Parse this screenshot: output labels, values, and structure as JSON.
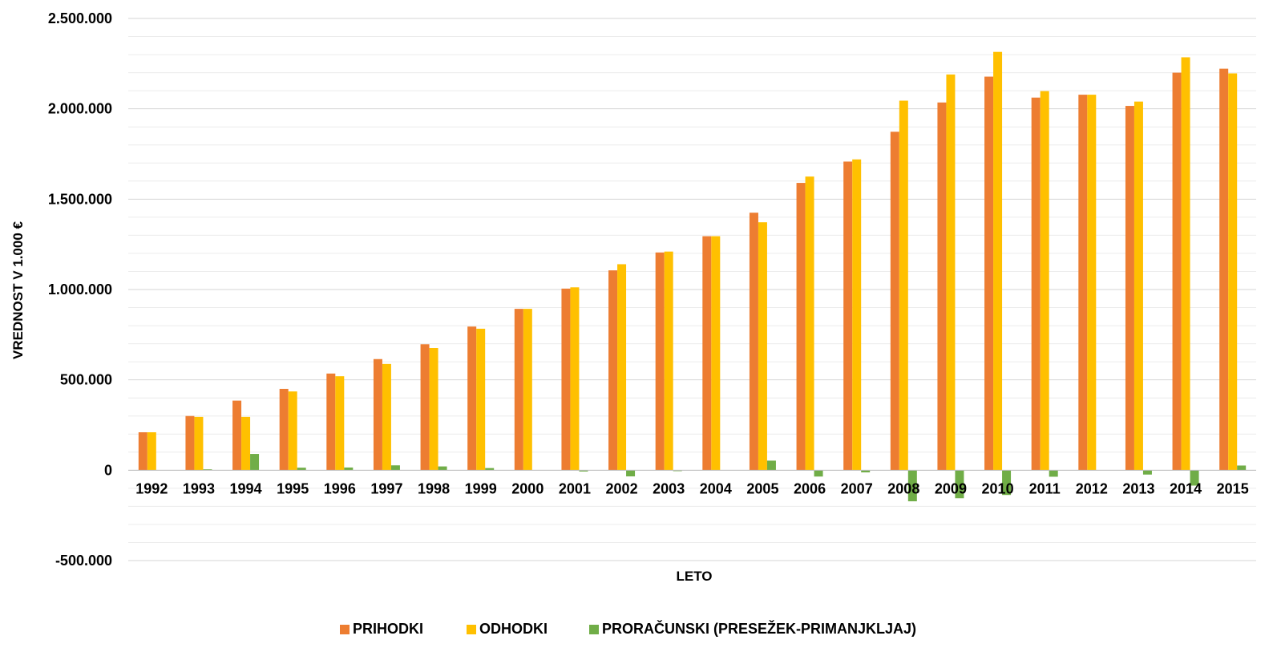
{
  "chart_data": {
    "type": "bar",
    "title": "",
    "xlabel": "LETO",
    "ylabel": "VREDNOST V 1.000 €",
    "ylim": [
      -500000,
      2500000
    ],
    "yticks": [
      -500000,
      0,
      500000,
      1000000,
      1500000,
      2000000,
      2500000
    ],
    "ytick_labels": [
      "-500.000",
      "0",
      "500.000",
      "1.000.000",
      "1.500.000",
      "2.000.000",
      "2.500.000"
    ],
    "grid": true,
    "legend_position": "bottom",
    "categories": [
      "1992",
      "1993",
      "1994",
      "1995",
      "1996",
      "1997",
      "1998",
      "1999",
      "2000",
      "2001",
      "2002",
      "2003",
      "2004",
      "2005",
      "2006",
      "2007",
      "2008",
      "2009",
      "2010",
      "2011",
      "2012",
      "2013",
      "2014",
      "2015"
    ],
    "series": [
      {
        "name": "PRIHODKI",
        "color": "#ED7D31",
        "values": [
          210000,
          300000,
          385000,
          450000,
          535000,
          615000,
          697000,
          795000,
          893000,
          1005000,
          1106000,
          1205000,
          1295000,
          1425000,
          1590000,
          1708000,
          1873000,
          2035000,
          2178000,
          2062000,
          2078000,
          2016000,
          2200000,
          2222000
        ]
      },
      {
        "name": "ODHODKI",
        "color": "#FFC000",
        "values": [
          210000,
          295000,
          295000,
          436000,
          520000,
          588000,
          676000,
          783000,
          893000,
          1012000,
          1140000,
          1210000,
          1295000,
          1372000,
          1625000,
          1720000,
          2045000,
          2190000,
          2315000,
          2098000,
          2078000,
          2040000,
          2285000,
          2196000
        ]
      },
      {
        "name": "PRORAČUNSKI (PRESEŽEK-PRIMANJKLJAJ)",
        "color": "#70AD47",
        "values": [
          0,
          5000,
          90000,
          14000,
          15000,
          27000,
          21000,
          12000,
          0,
          -7000,
          -34000,
          -5000,
          0,
          53000,
          -35000,
          -12000,
          -172000,
          -155000,
          -137000,
          -36000,
          0,
          -24000,
          -85000,
          26000
        ]
      }
    ]
  }
}
